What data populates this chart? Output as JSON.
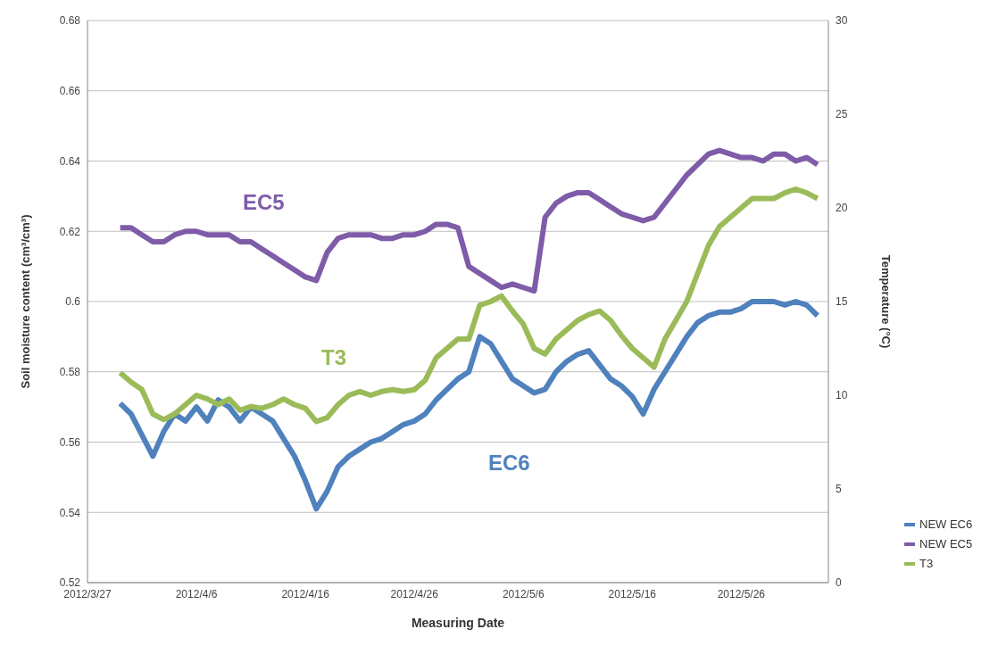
{
  "chart_data": {
    "type": "line",
    "xlabel": "Measuring Date",
    "ylabel": "Soil moisture content (cm³/cm³)",
    "y2label": "Temperature (°C)",
    "x": [
      "2012-03-30",
      "2012-03-31",
      "2012-04-01",
      "2012-04-02",
      "2012-04-03",
      "2012-04-04",
      "2012-04-05",
      "2012-04-06",
      "2012-04-07",
      "2012-04-08",
      "2012-04-09",
      "2012-04-10",
      "2012-04-11",
      "2012-04-12",
      "2012-04-13",
      "2012-04-14",
      "2012-04-15",
      "2012-04-16",
      "2012-04-17",
      "2012-04-18",
      "2012-04-19",
      "2012-04-20",
      "2012-04-21",
      "2012-04-22",
      "2012-04-23",
      "2012-04-24",
      "2012-04-25",
      "2012-04-26",
      "2012-04-27",
      "2012-04-28",
      "2012-04-29",
      "2012-04-30",
      "2012-05-01",
      "2012-05-02",
      "2012-05-03",
      "2012-05-04",
      "2012-05-05",
      "2012-05-06",
      "2012-05-07",
      "2012-05-08",
      "2012-05-09",
      "2012-05-10",
      "2012-05-11",
      "2012-05-12",
      "2012-05-13",
      "2012-05-14",
      "2012-05-15",
      "2012-05-16",
      "2012-05-17",
      "2012-05-18",
      "2012-05-19",
      "2012-05-20",
      "2012-05-21",
      "2012-05-22",
      "2012-05-23",
      "2012-05-24",
      "2012-05-25",
      "2012-05-26",
      "2012-05-27",
      "2012-05-28",
      "2012-05-29",
      "2012-05-30",
      "2012-05-31",
      "2012-06-01",
      "2012-06-02"
    ],
    "series": [
      {
        "name": "NEW EC6",
        "color": "#4f81bd",
        "values": [
          0.571,
          0.568,
          0.562,
          0.556,
          0.563,
          0.568,
          0.566,
          0.57,
          0.566,
          0.572,
          0.57,
          0.566,
          0.57,
          0.568,
          0.566,
          0.561,
          0.556,
          0.549,
          0.541,
          0.546,
          0.553,
          0.556,
          0.558,
          0.56,
          0.561,
          0.563,
          0.565,
          0.566,
          0.568,
          0.572,
          0.575,
          0.578,
          0.58,
          0.59,
          0.588,
          0.583,
          0.578,
          0.576,
          0.574,
          0.575,
          0.58,
          0.583,
          0.585,
          0.586,
          0.582,
          0.578,
          0.576,
          0.573,
          0.568,
          0.575,
          0.58,
          0.585,
          0.59,
          0.594,
          0.596,
          0.597,
          0.597,
          0.598,
          0.6,
          0.6,
          0.6,
          0.599,
          0.6,
          0.599,
          0.596
        ]
      },
      {
        "name": "NEW EC5",
        "color": "#7e5ca8",
        "values": [
          0.621,
          0.621,
          0.619,
          0.617,
          0.617,
          0.619,
          0.62,
          0.62,
          0.619,
          0.619,
          0.619,
          0.617,
          0.617,
          0.615,
          0.613,
          0.611,
          0.609,
          0.607,
          0.606,
          0.614,
          0.618,
          0.619,
          0.619,
          0.619,
          0.618,
          0.618,
          0.619,
          0.619,
          0.62,
          0.622,
          0.622,
          0.621,
          0.61,
          0.608,
          0.606,
          0.604,
          0.605,
          0.604,
          0.603,
          0.624,
          0.628,
          0.63,
          0.631,
          0.631,
          0.629,
          0.627,
          0.625,
          0.624,
          0.623,
          0.624,
          0.628,
          0.632,
          0.636,
          0.639,
          0.642,
          0.643,
          0.642,
          0.641,
          0.641,
          0.64,
          0.642,
          0.642,
          0.64,
          0.641,
          0.639
        ]
      },
      {
        "name": "T3",
        "color": "#9bbb59",
        "axis": "y2",
        "values": [
          11.2,
          10.7,
          10.3,
          9.0,
          8.7,
          9.0,
          9.5,
          10.0,
          9.8,
          9.5,
          9.8,
          9.2,
          9.4,
          9.3,
          9.5,
          9.8,
          9.5,
          9.3,
          8.6,
          8.8,
          9.5,
          10.0,
          10.2,
          10.0,
          10.2,
          10.3,
          10.2,
          10.3,
          10.8,
          12.0,
          12.5,
          13.0,
          13.0,
          14.8,
          15.0,
          15.3,
          14.5,
          13.8,
          12.5,
          12.2,
          13.0,
          13.5,
          14.0,
          14.3,
          14.5,
          14.0,
          13.2,
          12.5,
          12.0,
          11.5,
          13.0,
          14.0,
          15.0,
          16.5,
          18.0,
          19.0,
          19.5,
          20.0,
          20.5,
          20.5,
          20.5,
          20.8,
          21.0,
          20.8,
          20.5
        ]
      }
    ],
    "xlim": [
      "2012-03-27",
      "2012-06-03"
    ],
    "xticks": [
      {
        "value": "2012-03-27",
        "label": "2012/3/27"
      },
      {
        "value": "2012-04-06",
        "label": "2012/4/6"
      },
      {
        "value": "2012-04-16",
        "label": "2012/4/16"
      },
      {
        "value": "2012-04-26",
        "label": "2012/4/26"
      },
      {
        "value": "2012-05-06",
        "label": "2012/5/6"
      },
      {
        "value": "2012-05-16",
        "label": "2012/5/16"
      },
      {
        "value": "2012-05-26",
        "label": "2012/5/26"
      }
    ],
    "ylim": [
      0.52,
      0.68
    ],
    "yticks": [
      0.52,
      0.54,
      0.56,
      0.58,
      0.6,
      0.62,
      0.64,
      0.66,
      0.68
    ],
    "y2lim": [
      0,
      30
    ],
    "y2ticks": [
      0,
      5,
      10,
      15,
      20,
      25,
      30
    ],
    "annotations": [
      "EC6",
      "EC5",
      "T3"
    ],
    "grid": "y",
    "legend": "right",
    "marker": "none",
    "line_style": "solid"
  }
}
